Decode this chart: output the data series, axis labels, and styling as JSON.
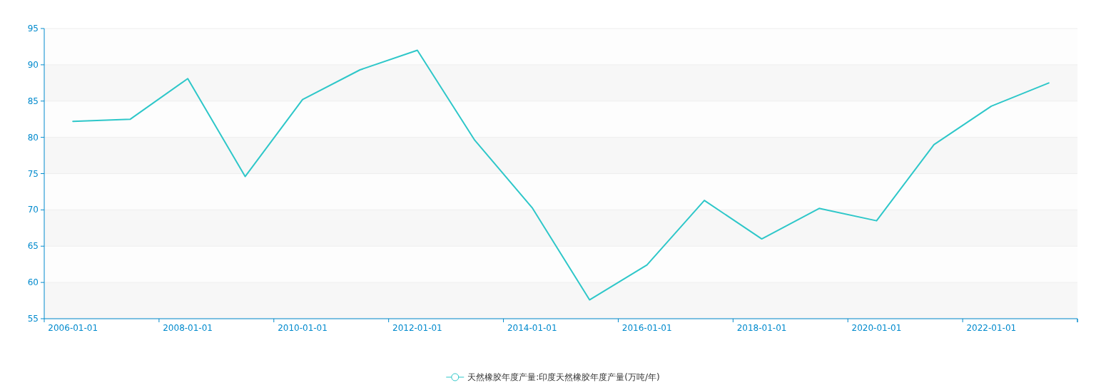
{
  "chart_data": {
    "type": "line",
    "categories": [
      "2006-01-01",
      null,
      "2008-01-01",
      null,
      "2010-01-01",
      null,
      "2012-01-01",
      null,
      "2014-01-01",
      null,
      "2016-01-01",
      null,
      "2018-01-01",
      null,
      "2020-01-01",
      null,
      "2022-01-01",
      null
    ],
    "series": [
      {
        "name": "天然橡胶年度产量:印度天然橡胶年度产量(万吨/年)",
        "color": "#2ec7c9",
        "values": [
          82.2,
          82.5,
          88.1,
          74.6,
          85.2,
          89.3,
          92.0,
          79.6,
          70.3,
          57.6,
          62.4,
          71.3,
          66.0,
          70.2,
          68.5,
          79.0,
          84.3,
          87.5
        ]
      }
    ],
    "ylim": [
      55,
      95
    ],
    "yticks": [
      55,
      60,
      65,
      70,
      75,
      80,
      85,
      90,
      95
    ],
    "grid": "y",
    "legend": "bottom"
  }
}
